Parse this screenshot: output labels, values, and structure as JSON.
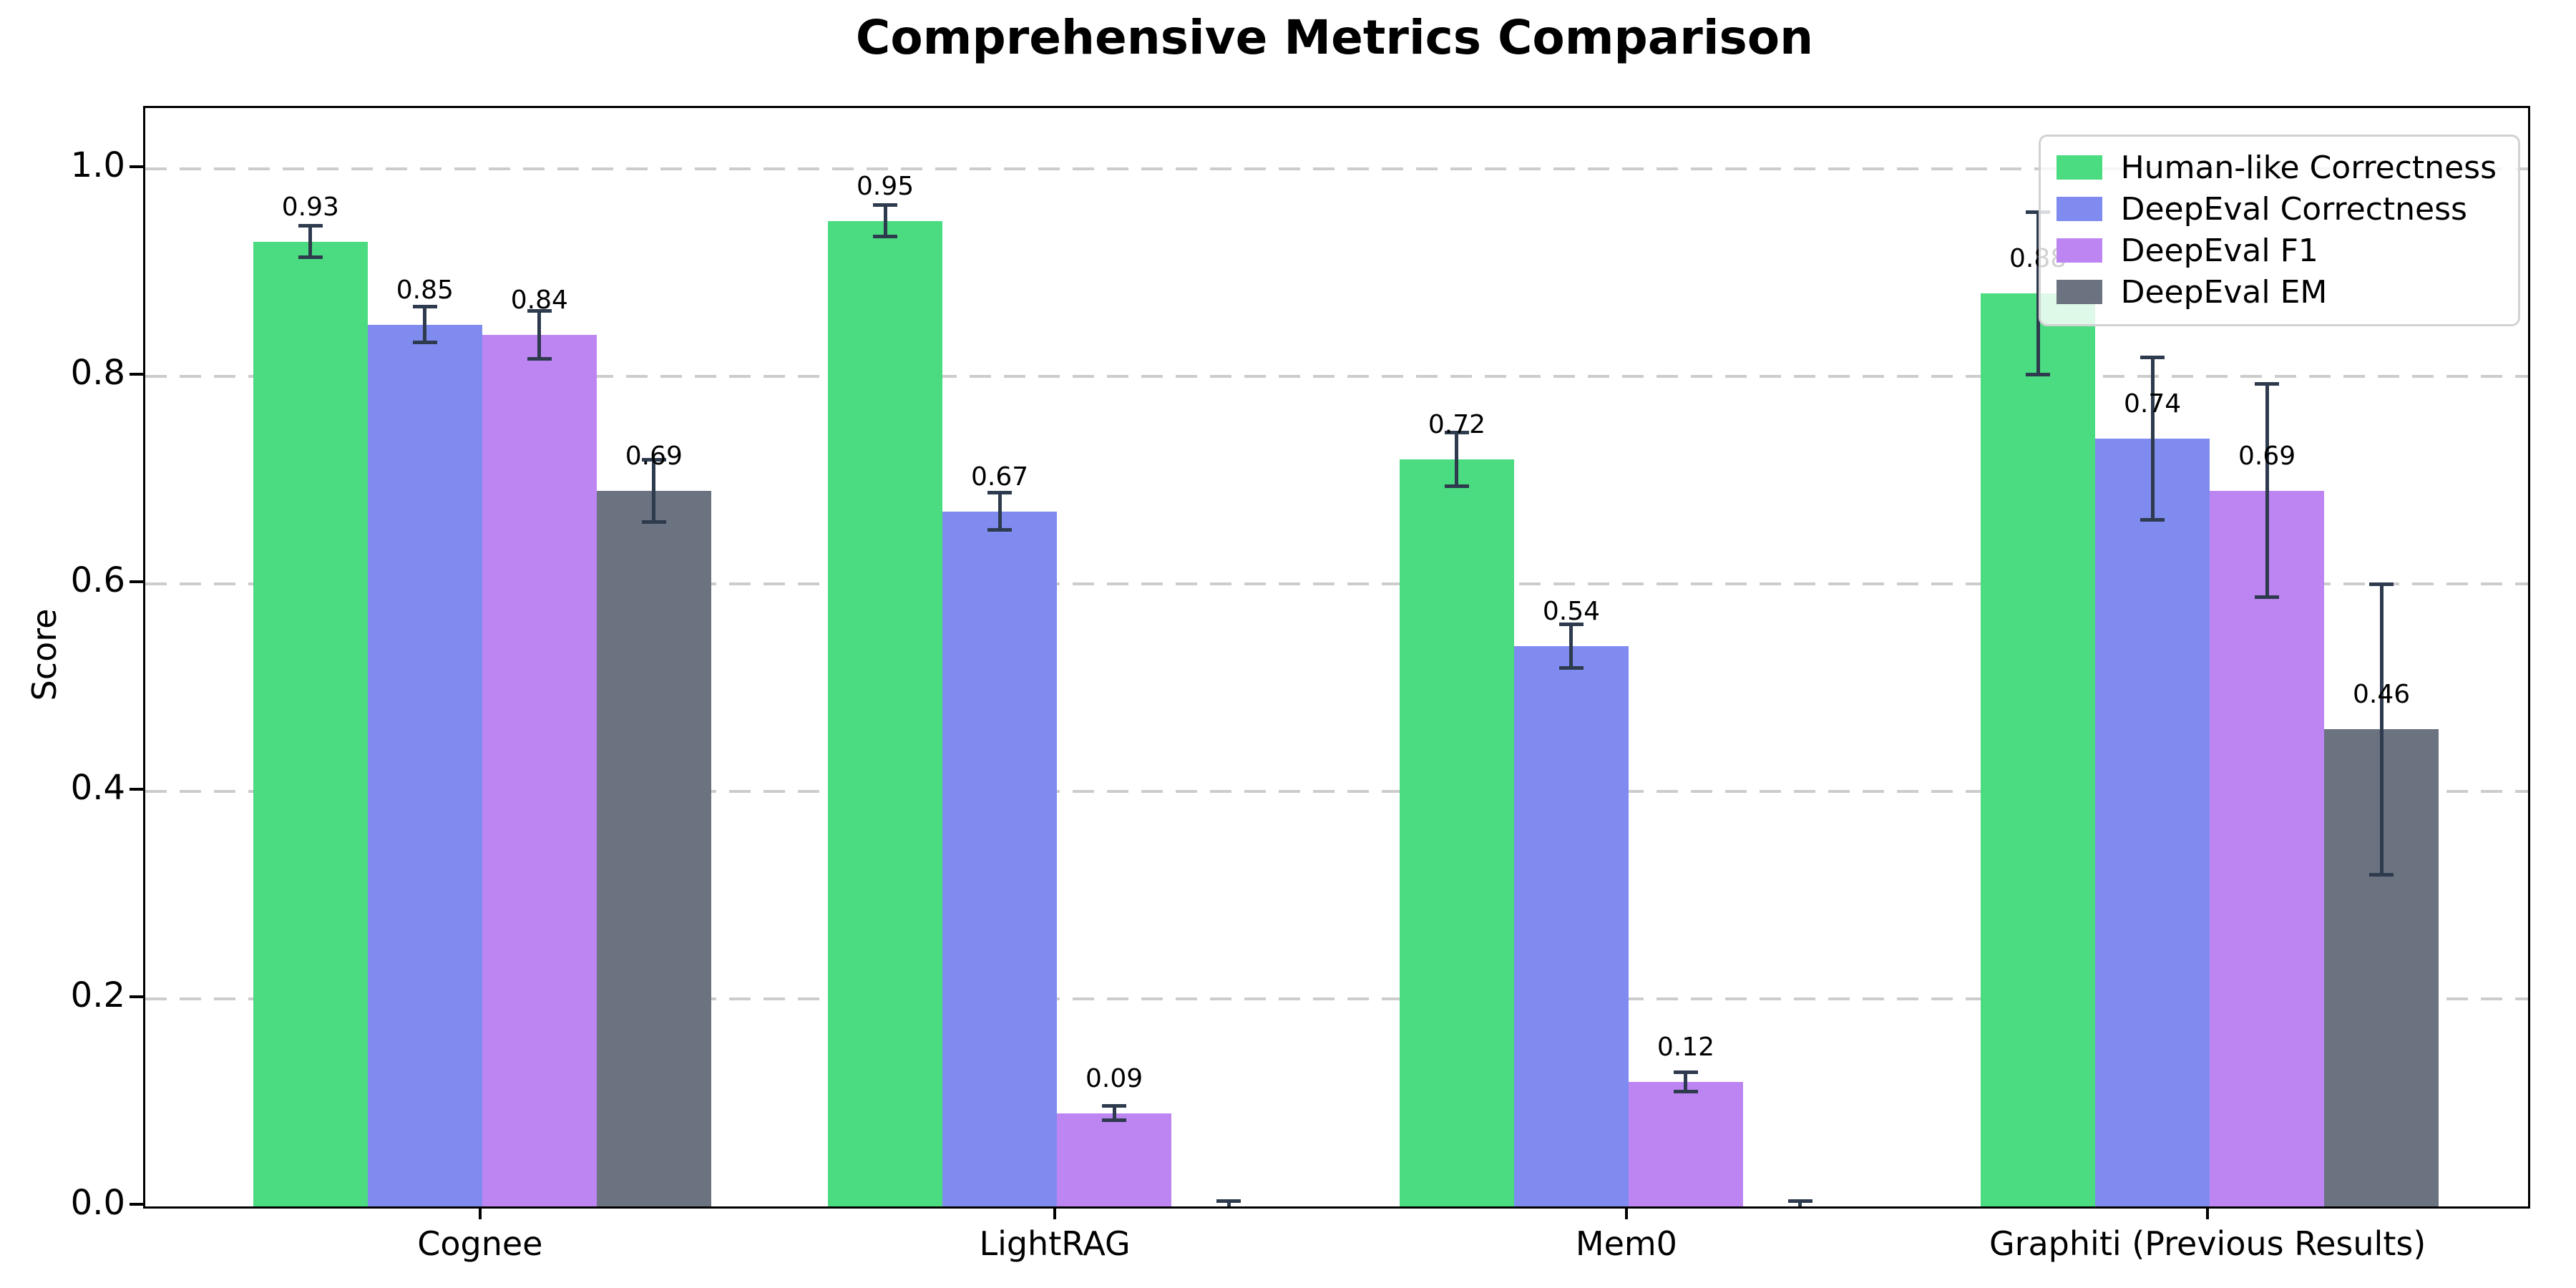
{
  "chart_data": {
    "type": "bar",
    "title": "Comprehensive Metrics Comparison",
    "xlabel": "",
    "ylabel": "Score",
    "categories": [
      "Cognee",
      "LightRAG",
      "Mem0",
      "Graphiti (Previous Results)"
    ],
    "series": [
      {
        "name": "Human-like Correctness",
        "color": "#4bdb80",
        "values": [
          0.93,
          0.95,
          0.72,
          0.88
        ],
        "errors": [
          0.015,
          0.015,
          0.026,
          0.078
        ],
        "labels": [
          "0.93",
          "0.95",
          "0.72",
          "0.88"
        ]
      },
      {
        "name": "DeepEval Correctness",
        "color": "#7f8bef",
        "values": [
          0.85,
          0.67,
          0.54,
          0.74
        ],
        "errors": [
          0.017,
          0.018,
          0.021,
          0.078
        ],
        "labels": [
          "0.85",
          "0.67",
          "0.54",
          "0.74"
        ]
      },
      {
        "name": "DeepEval F1",
        "color": "#bd85f2",
        "values": [
          0.84,
          0.09,
          0.12,
          0.69
        ],
        "errors": [
          0.023,
          0.007,
          0.009,
          0.103
        ],
        "labels": [
          "0.84",
          "0.09",
          "0.12",
          "0.69"
        ]
      },
      {
        "name": "DeepEval EM",
        "color": "#6b7280",
        "values": [
          0.69,
          0.0,
          0.0,
          0.46
        ],
        "errors": [
          0.03,
          0.005,
          0.005,
          0.14
        ],
        "labels": [
          "0.69",
          "",
          "",
          "0.46"
        ]
      }
    ],
    "yticks": [
      "0.0",
      "0.2",
      "0.4",
      "0.6",
      "0.8",
      "1.0"
    ],
    "ytick_values": [
      0.0,
      0.2,
      0.4,
      0.6,
      0.8,
      1.0
    ],
    "ylim": [
      0,
      1.059
    ],
    "grid": "dashed-horizontal",
    "gridline_color": "#cccccc",
    "legend_position": "upper right",
    "error_bar_color": "#2e3b4e",
    "background_color": "#ffffff",
    "spine_color": "#000000"
  }
}
